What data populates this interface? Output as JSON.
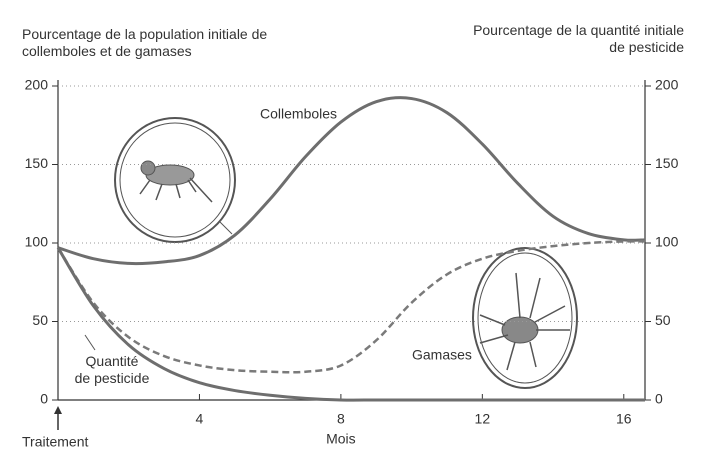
{
  "chart_data": {
    "type": "line",
    "ylabel": "Pourcentage de la population initiale de collemboles et de gamases",
    "y2label": "Pourcentage de la quantité initiale de pesticide",
    "xlabel": "Mois",
    "annotation": "Traitement",
    "x": [
      0,
      1,
      2,
      3,
      4,
      5,
      6,
      7,
      8,
      9,
      10,
      11,
      12,
      13,
      14,
      15,
      16,
      16.6
    ],
    "series": [
      {
        "name": "Collemboles",
        "color": "#6e6e6e",
        "style": "solid",
        "values": [
          97,
          90,
          87,
          88,
          92,
          105,
          128,
          155,
          177,
          190,
          192,
          183,
          163,
          138,
          117,
          106,
          102,
          102
        ]
      },
      {
        "name": "Gamases",
        "color": "#7a7a7a",
        "style": "dashed",
        "values": [
          97,
          62,
          40,
          28,
          22,
          19,
          18,
          18,
          22,
          38,
          62,
          80,
          90,
          95,
          98,
          100,
          101,
          101
        ]
      },
      {
        "name": "Quantité de pesticide",
        "color": "#6e6e6e",
        "style": "solid",
        "axis": "y2",
        "values": [
          97,
          60,
          35,
          20,
          11,
          6,
          3,
          1,
          0,
          0,
          0,
          0,
          0,
          0,
          0,
          0,
          0,
          0
        ]
      }
    ],
    "xlim": [
      0,
      16.6
    ],
    "xticks": [
      4,
      8,
      12,
      16
    ],
    "ylim": [
      0,
      200
    ],
    "yticks": [
      0,
      50,
      100,
      150,
      200
    ],
    "y2lim": [
      0,
      200
    ],
    "y2ticks": [
      0,
      50,
      100,
      150,
      200
    ],
    "grid": true
  }
}
